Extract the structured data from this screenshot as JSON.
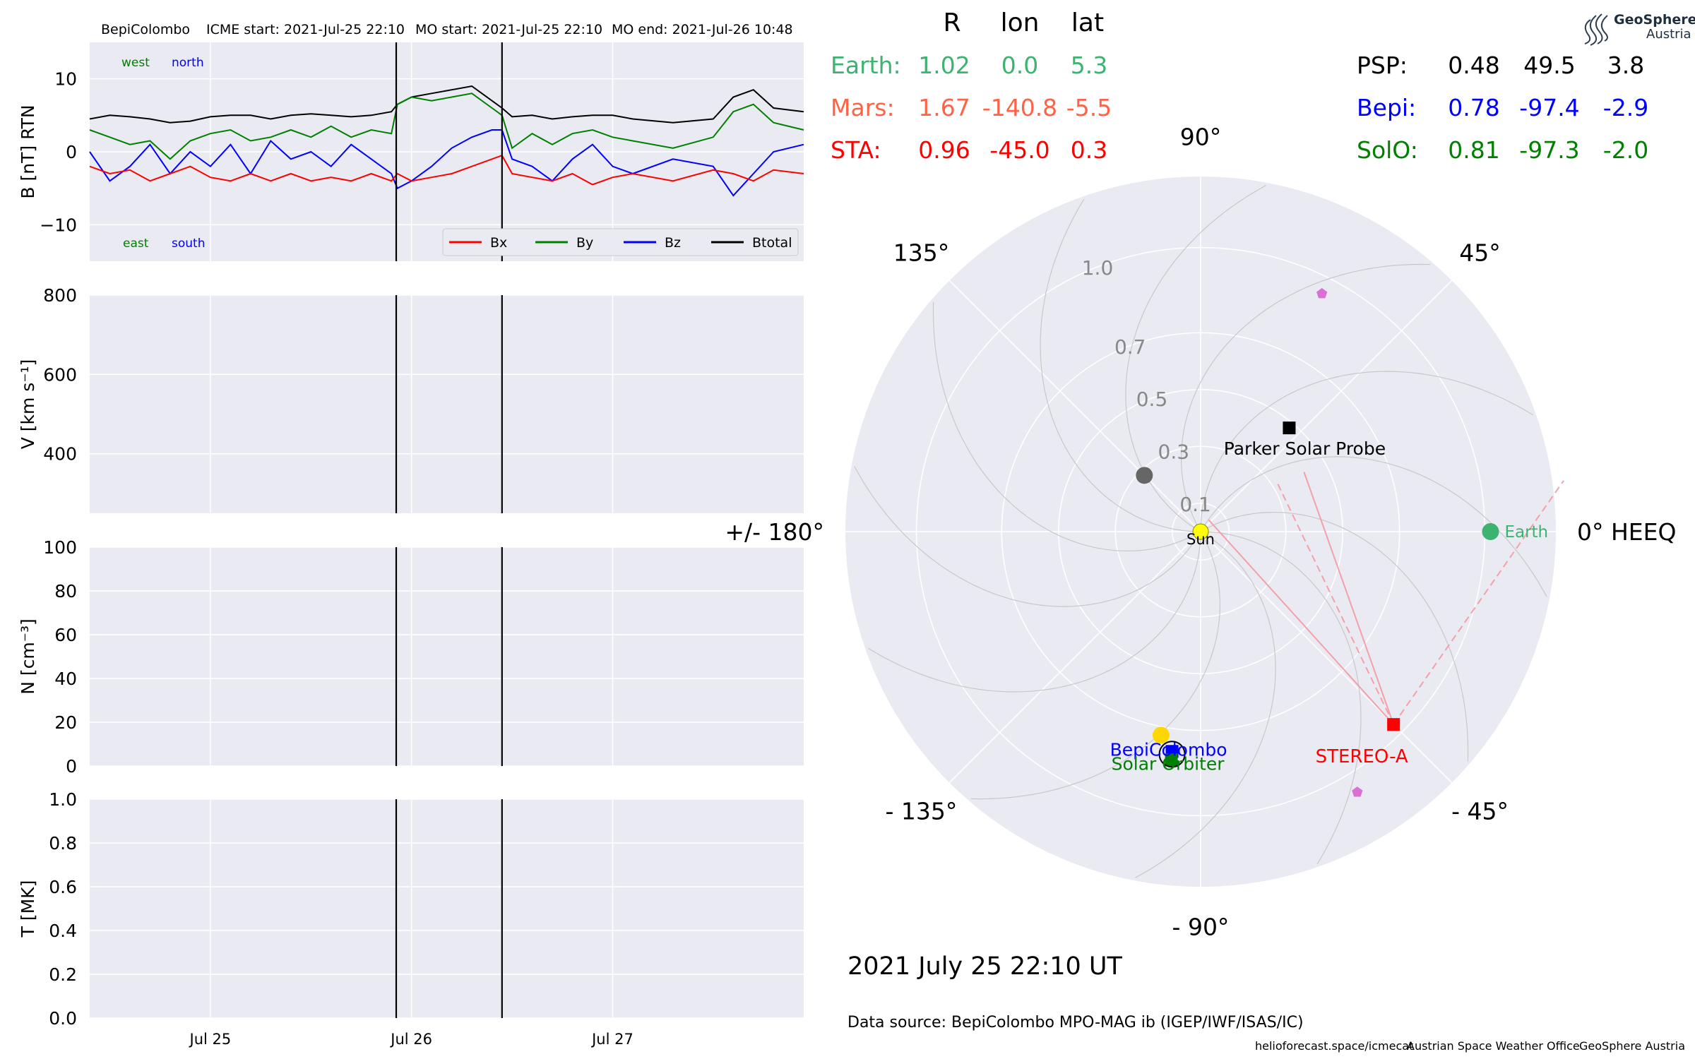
{
  "header": {
    "spacecraft": "BepiColombo",
    "icme_start": "ICME start: 2021-Jul-25 22:10",
    "mo_start": "MO start: 2021-Jul-25 22:10",
    "mo_end": "MO end: 2021-Jul-26 10:48"
  },
  "logo": {
    "line1": "GeoSphere",
    "line2": "Austria"
  },
  "table": {
    "headers": [
      "R",
      "lon",
      "lat"
    ],
    "left_rows": [
      {
        "name": "Earth:",
        "r": "1.02",
        "lon": "0.0",
        "lat": "5.3",
        "color": "#3cb371"
      },
      {
        "name": "Mars:",
        "r": "1.67",
        "lon": "-140.8",
        "lat": "-5.5",
        "color": "#ff6347"
      },
      {
        "name": "STA:",
        "r": "0.96",
        "lon": "-45.0",
        "lat": "0.3",
        "color": "#ff0000"
      }
    ],
    "right_rows": [
      {
        "name": "PSP:",
        "r": "0.48",
        "lon": "49.5",
        "lat": "3.8",
        "color": "#000000"
      },
      {
        "name": "Bepi:",
        "r": "0.78",
        "lon": "-97.4",
        "lat": "-2.9",
        "color": "#0000ff"
      },
      {
        "name": "SolO:",
        "r": "0.81",
        "lon": "-97.3",
        "lat": "-2.0",
        "color": "#008000"
      }
    ]
  },
  "date_label": "2021 July 25  22:10 UT",
  "data_source": "Data source: BepiColombo MPO-MAG ib (IGEP/IWF/ISAS/IC)",
  "footer": {
    "website": "helioforecast.space/icmecat",
    "office": "Austrian Space Weather Office",
    "org": "GeoSphere Austria"
  },
  "colors": {
    "axes_bg": "#eaeaf2",
    "grid": "#ffffff",
    "bx": "#ff0000",
    "by": "#008000",
    "bz": "#0000ff",
    "btotal": "#000000",
    "earth": "#3cb371",
    "sta": "#ff0000",
    "psp": "#000000",
    "bepi": "#0000ff",
    "solo": "#008000",
    "sun": "#ffff00",
    "hci_line": "#f4a0a8",
    "planet_gray": "#666666",
    "pentagon": "#da70d6",
    "fan_line": "#c8c8c8"
  },
  "chart_data": [
    {
      "type": "line",
      "title": "",
      "ylabel": "B [nT] RTN",
      "ylim": [
        -15,
        15
      ],
      "yticks": [
        -10,
        0,
        10
      ],
      "ytick_labels": [
        "−10",
        "0",
        "10"
      ],
      "xlim": [
        -0.6,
        2.95
      ],
      "x_unit": "days after 2021-07-25 00:00",
      "xticks": [
        0,
        1,
        2
      ],
      "xtick_labels": [
        "Jul 25",
        "Jul 26",
        "Jul 27"
      ],
      "vlines": [
        0.924,
        1.45
      ],
      "corner_labels": {
        "west": "west",
        "north": "north",
        "east": "east",
        "south": "south"
      },
      "legend": {
        "placement": "lower right",
        "entries": [
          "Bx",
          "By",
          "Bz",
          "Btotal"
        ]
      },
      "series": [
        {
          "name": "Btotal",
          "color": "#000000",
          "x": [
            -0.6,
            -0.5,
            -0.4,
            -0.3,
            -0.2,
            -0.1,
            0.0,
            0.1,
            0.2,
            0.3,
            0.4,
            0.5,
            0.6,
            0.7,
            0.8,
            0.9,
            0.93,
            1.0,
            1.1,
            1.2,
            1.3,
            1.4,
            1.45,
            1.5,
            1.6,
            1.7,
            1.8,
            1.9,
            2.0,
            2.1,
            2.3,
            2.5,
            2.6,
            2.7,
            2.8,
            2.95
          ],
          "values": [
            4.5,
            5.0,
            4.8,
            4.5,
            4.0,
            4.2,
            4.8,
            5.0,
            5.0,
            4.5,
            5.0,
            5.2,
            5.0,
            4.8,
            5.0,
            5.5,
            6.5,
            7.5,
            8.0,
            8.5,
            9.0,
            7.0,
            6.0,
            4.8,
            5.0,
            4.5,
            4.8,
            5.0,
            5.0,
            4.5,
            4.0,
            4.5,
            7.5,
            8.5,
            6.0,
            5.5
          ]
        },
        {
          "name": "By",
          "color": "#008000",
          "x": [
            -0.6,
            -0.5,
            -0.4,
            -0.3,
            -0.2,
            -0.1,
            0.0,
            0.1,
            0.2,
            0.3,
            0.4,
            0.5,
            0.6,
            0.7,
            0.8,
            0.9,
            0.93,
            1.0,
            1.1,
            1.2,
            1.3,
            1.4,
            1.45,
            1.5,
            1.6,
            1.7,
            1.8,
            1.9,
            2.0,
            2.1,
            2.3,
            2.5,
            2.6,
            2.7,
            2.8,
            2.95
          ],
          "values": [
            3.0,
            2.0,
            1.0,
            1.5,
            -1.0,
            1.5,
            2.5,
            3.0,
            1.5,
            2.0,
            3.0,
            2.0,
            3.5,
            2.0,
            3.0,
            2.5,
            6.5,
            7.5,
            7.0,
            7.5,
            8.0,
            6.0,
            5.0,
            0.5,
            2.5,
            1.0,
            2.5,
            3.0,
            2.0,
            1.5,
            0.5,
            2.0,
            5.5,
            6.5,
            4.0,
            3.0
          ]
        },
        {
          "name": "Bz",
          "color": "#0000ff",
          "x": [
            -0.6,
            -0.5,
            -0.4,
            -0.3,
            -0.2,
            -0.1,
            0.0,
            0.1,
            0.2,
            0.3,
            0.4,
            0.5,
            0.6,
            0.7,
            0.8,
            0.9,
            0.93,
            1.0,
            1.1,
            1.2,
            1.3,
            1.4,
            1.45,
            1.5,
            1.6,
            1.7,
            1.8,
            1.9,
            2.0,
            2.1,
            2.3,
            2.5,
            2.6,
            2.7,
            2.8,
            2.95
          ],
          "values": [
            0.0,
            -4.0,
            -2.0,
            1.0,
            -3.0,
            0.0,
            -2.0,
            1.0,
            -3.0,
            1.5,
            -1.0,
            0.0,
            -2.0,
            1.0,
            -1.0,
            -3.0,
            -5.0,
            -4.0,
            -2.0,
            0.5,
            2.0,
            3.0,
            3.0,
            -1.0,
            -2.0,
            -4.0,
            -1.0,
            1.0,
            -2.0,
            -3.0,
            -1.0,
            -2.0,
            -6.0,
            -3.0,
            0.0,
            1.0
          ]
        },
        {
          "name": "Bx",
          "color": "#ff0000",
          "x": [
            -0.6,
            -0.5,
            -0.4,
            -0.3,
            -0.2,
            -0.1,
            0.0,
            0.1,
            0.2,
            0.3,
            0.4,
            0.5,
            0.6,
            0.7,
            0.8,
            0.9,
            0.93,
            1.0,
            1.1,
            1.2,
            1.3,
            1.4,
            1.45,
            1.5,
            1.6,
            1.7,
            1.8,
            1.9,
            2.0,
            2.1,
            2.3,
            2.5,
            2.6,
            2.7,
            2.8,
            2.95
          ],
          "values": [
            -2.0,
            -3.0,
            -2.5,
            -4.0,
            -3.0,
            -2.0,
            -3.5,
            -4.0,
            -3.0,
            -4.0,
            -3.0,
            -4.0,
            -3.5,
            -4.0,
            -3.0,
            -4.0,
            -3.0,
            -4.0,
            -3.5,
            -3.0,
            -2.0,
            -1.0,
            -0.5,
            -3.0,
            -3.5,
            -4.0,
            -3.0,
            -4.5,
            -3.5,
            -3.0,
            -4.0,
            -2.5,
            -3.0,
            -4.0,
            -2.5,
            -3.0
          ]
        }
      ]
    },
    {
      "type": "line",
      "ylabel": "V [km s⁻¹]",
      "ylim": [
        250,
        800
      ],
      "yticks": [
        400,
        600,
        800
      ],
      "ytick_labels": [
        "400",
        "600",
        "800"
      ],
      "xlim": [
        -0.6,
        2.95
      ],
      "vlines": [
        0.924,
        1.45
      ],
      "series": []
    },
    {
      "type": "line",
      "ylabel": "N [cm⁻³]",
      "ylim": [
        0,
        100
      ],
      "yticks": [
        0,
        20,
        40,
        60,
        80,
        100
      ],
      "ytick_labels": [
        "0",
        "20",
        "40",
        "60",
        "80",
        "100"
      ],
      "xlim": [
        -0.6,
        2.95
      ],
      "vlines": [
        0.924,
        1.45
      ],
      "series": []
    },
    {
      "type": "line",
      "ylabel": "T [MK]",
      "ylim": [
        0,
        1
      ],
      "yticks": [
        0,
        0.2,
        0.4,
        0.6,
        0.8,
        1.0
      ],
      "ytick_labels": [
        "0.0",
        "0.2",
        "0.4",
        "0.6",
        "0.8",
        "1.0"
      ],
      "xlim": [
        -0.6,
        2.95
      ],
      "xticks": [
        0,
        1,
        2
      ],
      "xtick_labels": [
        "Jul 25",
        "Jul 26",
        "Jul 27"
      ],
      "vlines": [
        0.924,
        1.45
      ],
      "series": []
    },
    {
      "type": "scatter",
      "projection": "polar",
      "rmax_au": 1.25,
      "rticks": [
        0.1,
        0.3,
        0.5,
        0.7,
        1.0
      ],
      "rtick_labels": [
        "0.1",
        "0.3",
        "0.5",
        "0.7",
        "1.0"
      ],
      "theta_ticks": [
        0,
        45,
        90,
        135,
        180,
        -135,
        -90,
        -45
      ],
      "theta_labels": [
        "0° HEEQ",
        "45°",
        "90°",
        "135°",
        "+/- 180°",
        "- 135°",
        "- 90°",
        "- 45°"
      ],
      "objects": [
        {
          "name": "Sun",
          "label": "Sun",
          "r": 0.0,
          "lon": 0.0,
          "color": "#ffff00",
          "marker": "circle"
        },
        {
          "name": "Earth",
          "label": "Earth",
          "r": 1.02,
          "lon": 0.0,
          "color": "#3cb371",
          "marker": "circle"
        },
        {
          "name": "STEREO-A",
          "label": "STEREO-A",
          "r": 0.96,
          "lon": -45.0,
          "color": "#ff0000",
          "marker": "square"
        },
        {
          "name": "Parker Solar Probe",
          "label": "Parker Solar Probe",
          "r": 0.48,
          "lon": 49.5,
          "color": "#000000",
          "marker": "square"
        },
        {
          "name": "BepiColombo",
          "label": "BepiColombo",
          "r": 0.78,
          "lon": -97.4,
          "color": "#0000ff",
          "marker": "square"
        },
        {
          "name": "Solar Orbiter",
          "label": "Solar Orbiter",
          "r": 0.81,
          "lon": -97.3,
          "color": "#008000",
          "marker": "square"
        },
        {
          "name": "Mercury",
          "label": "",
          "r": 0.28,
          "lon": 135,
          "color": "#666666",
          "marker": "circle"
        },
        {
          "name": "Venus",
          "label": "",
          "r": 0.73,
          "lon": -101,
          "color": "#ffd700",
          "marker": "circle"
        },
        {
          "name": "object-upper",
          "label": "",
          "r": 0.94,
          "lon": 63,
          "color": "#da70d6",
          "marker": "pentagon"
        },
        {
          "name": "object-lower",
          "label": "",
          "r": 1.07,
          "lon": -59,
          "color": "#da70d6",
          "marker": "pentagon"
        }
      ]
    }
  ]
}
